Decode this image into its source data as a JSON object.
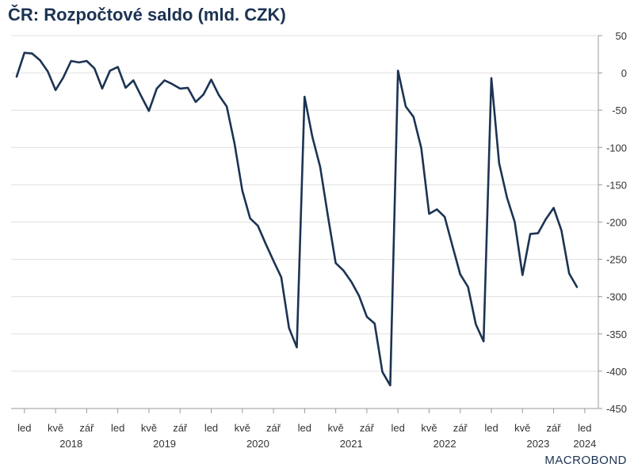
{
  "title": "ČR: Rozpočtové saldo (mld. CZK)",
  "brand": "MACROBOND",
  "colors": {
    "line": "#1c3353",
    "grid": "#e0e0e0",
    "text": "#333333"
  },
  "chart_data": {
    "type": "line",
    "title": "ČR: Rozpočtové saldo (mld. CZK)",
    "xlabel": "",
    "ylabel": "",
    "ylim": [
      -450,
      50
    ],
    "yticks": [
      50,
      0,
      -50,
      -100,
      -150,
      -200,
      -250,
      -300,
      -350,
      -400,
      -450
    ],
    "y_axis_position": "right",
    "grid": true,
    "legend": "none",
    "month_ticks": [
      {
        "date": "2018-01",
        "label": "led"
      },
      {
        "date": "2018-05",
        "label": "kvě"
      },
      {
        "date": "2018-09",
        "label": "zář"
      },
      {
        "date": "2019-01",
        "label": "led"
      },
      {
        "date": "2019-05",
        "label": "kvě"
      },
      {
        "date": "2019-09",
        "label": "zář"
      },
      {
        "date": "2020-01",
        "label": "led"
      },
      {
        "date": "2020-05",
        "label": "kvě"
      },
      {
        "date": "2020-09",
        "label": "zář"
      },
      {
        "date": "2021-01",
        "label": "led"
      },
      {
        "date": "2021-05",
        "label": "kvě"
      },
      {
        "date": "2021-09",
        "label": "zář"
      },
      {
        "date": "2022-01",
        "label": "led"
      },
      {
        "date": "2022-05",
        "label": "kvě"
      },
      {
        "date": "2022-09",
        "label": "zář"
      },
      {
        "date": "2023-01",
        "label": "led"
      },
      {
        "date": "2023-05",
        "label": "kvě"
      },
      {
        "date": "2023-09",
        "label": "zář"
      },
      {
        "date": "2024-01",
        "label": "led"
      }
    ],
    "year_labels": [
      {
        "year": "2018",
        "center": "2018-07"
      },
      {
        "year": "2019",
        "center": "2019-07"
      },
      {
        "year": "2020",
        "center": "2020-07"
      },
      {
        "year": "2021",
        "center": "2021-07"
      },
      {
        "year": "2022",
        "center": "2022-07"
      },
      {
        "year": "2023",
        "center": "2023-07"
      },
      {
        "year": "2024",
        "center": "2024-01"
      }
    ],
    "series": [
      {
        "x": [
          "2017-12",
          "2018-01",
          "2018-02",
          "2018-03",
          "2018-04",
          "2018-05",
          "2018-06",
          "2018-07",
          "2018-08",
          "2018-09",
          "2018-10",
          "2018-11",
          "2018-12",
          "2019-01",
          "2019-02",
          "2019-03",
          "2019-04",
          "2019-05",
          "2019-06",
          "2019-07",
          "2019-08",
          "2019-09",
          "2019-10",
          "2019-11",
          "2019-12",
          "2020-01",
          "2020-02",
          "2020-03",
          "2020-04",
          "2020-05",
          "2020-06",
          "2020-07",
          "2020-08",
          "2020-09",
          "2020-10",
          "2020-11",
          "2020-12",
          "2021-01",
          "2021-02",
          "2021-03",
          "2021-04",
          "2021-05",
          "2021-06",
          "2021-07",
          "2021-08",
          "2021-09",
          "2021-10",
          "2021-11",
          "2021-12",
          "2022-01",
          "2022-02",
          "2022-03",
          "2022-04",
          "2022-05",
          "2022-06",
          "2022-07",
          "2022-08",
          "2022-09",
          "2022-10",
          "2022-11",
          "2022-12",
          "2023-01",
          "2023-02",
          "2023-03",
          "2023-04",
          "2023-05",
          "2023-06",
          "2023-07",
          "2023-08",
          "2023-09",
          "2023-10",
          "2023-11",
          "2023-12"
        ],
        "values": [
          -5,
          27,
          26,
          17,
          2,
          -23,
          -6,
          16,
          14,
          16,
          6,
          -21,
          3,
          8,
          -20,
          -10,
          -31,
          -51,
          -21,
          -10,
          -15,
          -21,
          -20,
          -39,
          -29,
          -9,
          -30,
          -45,
          -95,
          -158,
          -195,
          -205,
          -229,
          -252,
          -274,
          -342,
          -368,
          -32,
          -86,
          -126,
          -192,
          -255,
          -265,
          -280,
          -299,
          -327,
          -336,
          -401,
          -419,
          3,
          -45,
          -59,
          -101,
          -189,
          -183,
          -193,
          -232,
          -270,
          -287,
          -337,
          -360,
          -7,
          -121,
          -167,
          -200,
          -271,
          -216,
          -215,
          -196,
          -181,
          -211,
          -269,
          -287
        ]
      }
    ]
  }
}
